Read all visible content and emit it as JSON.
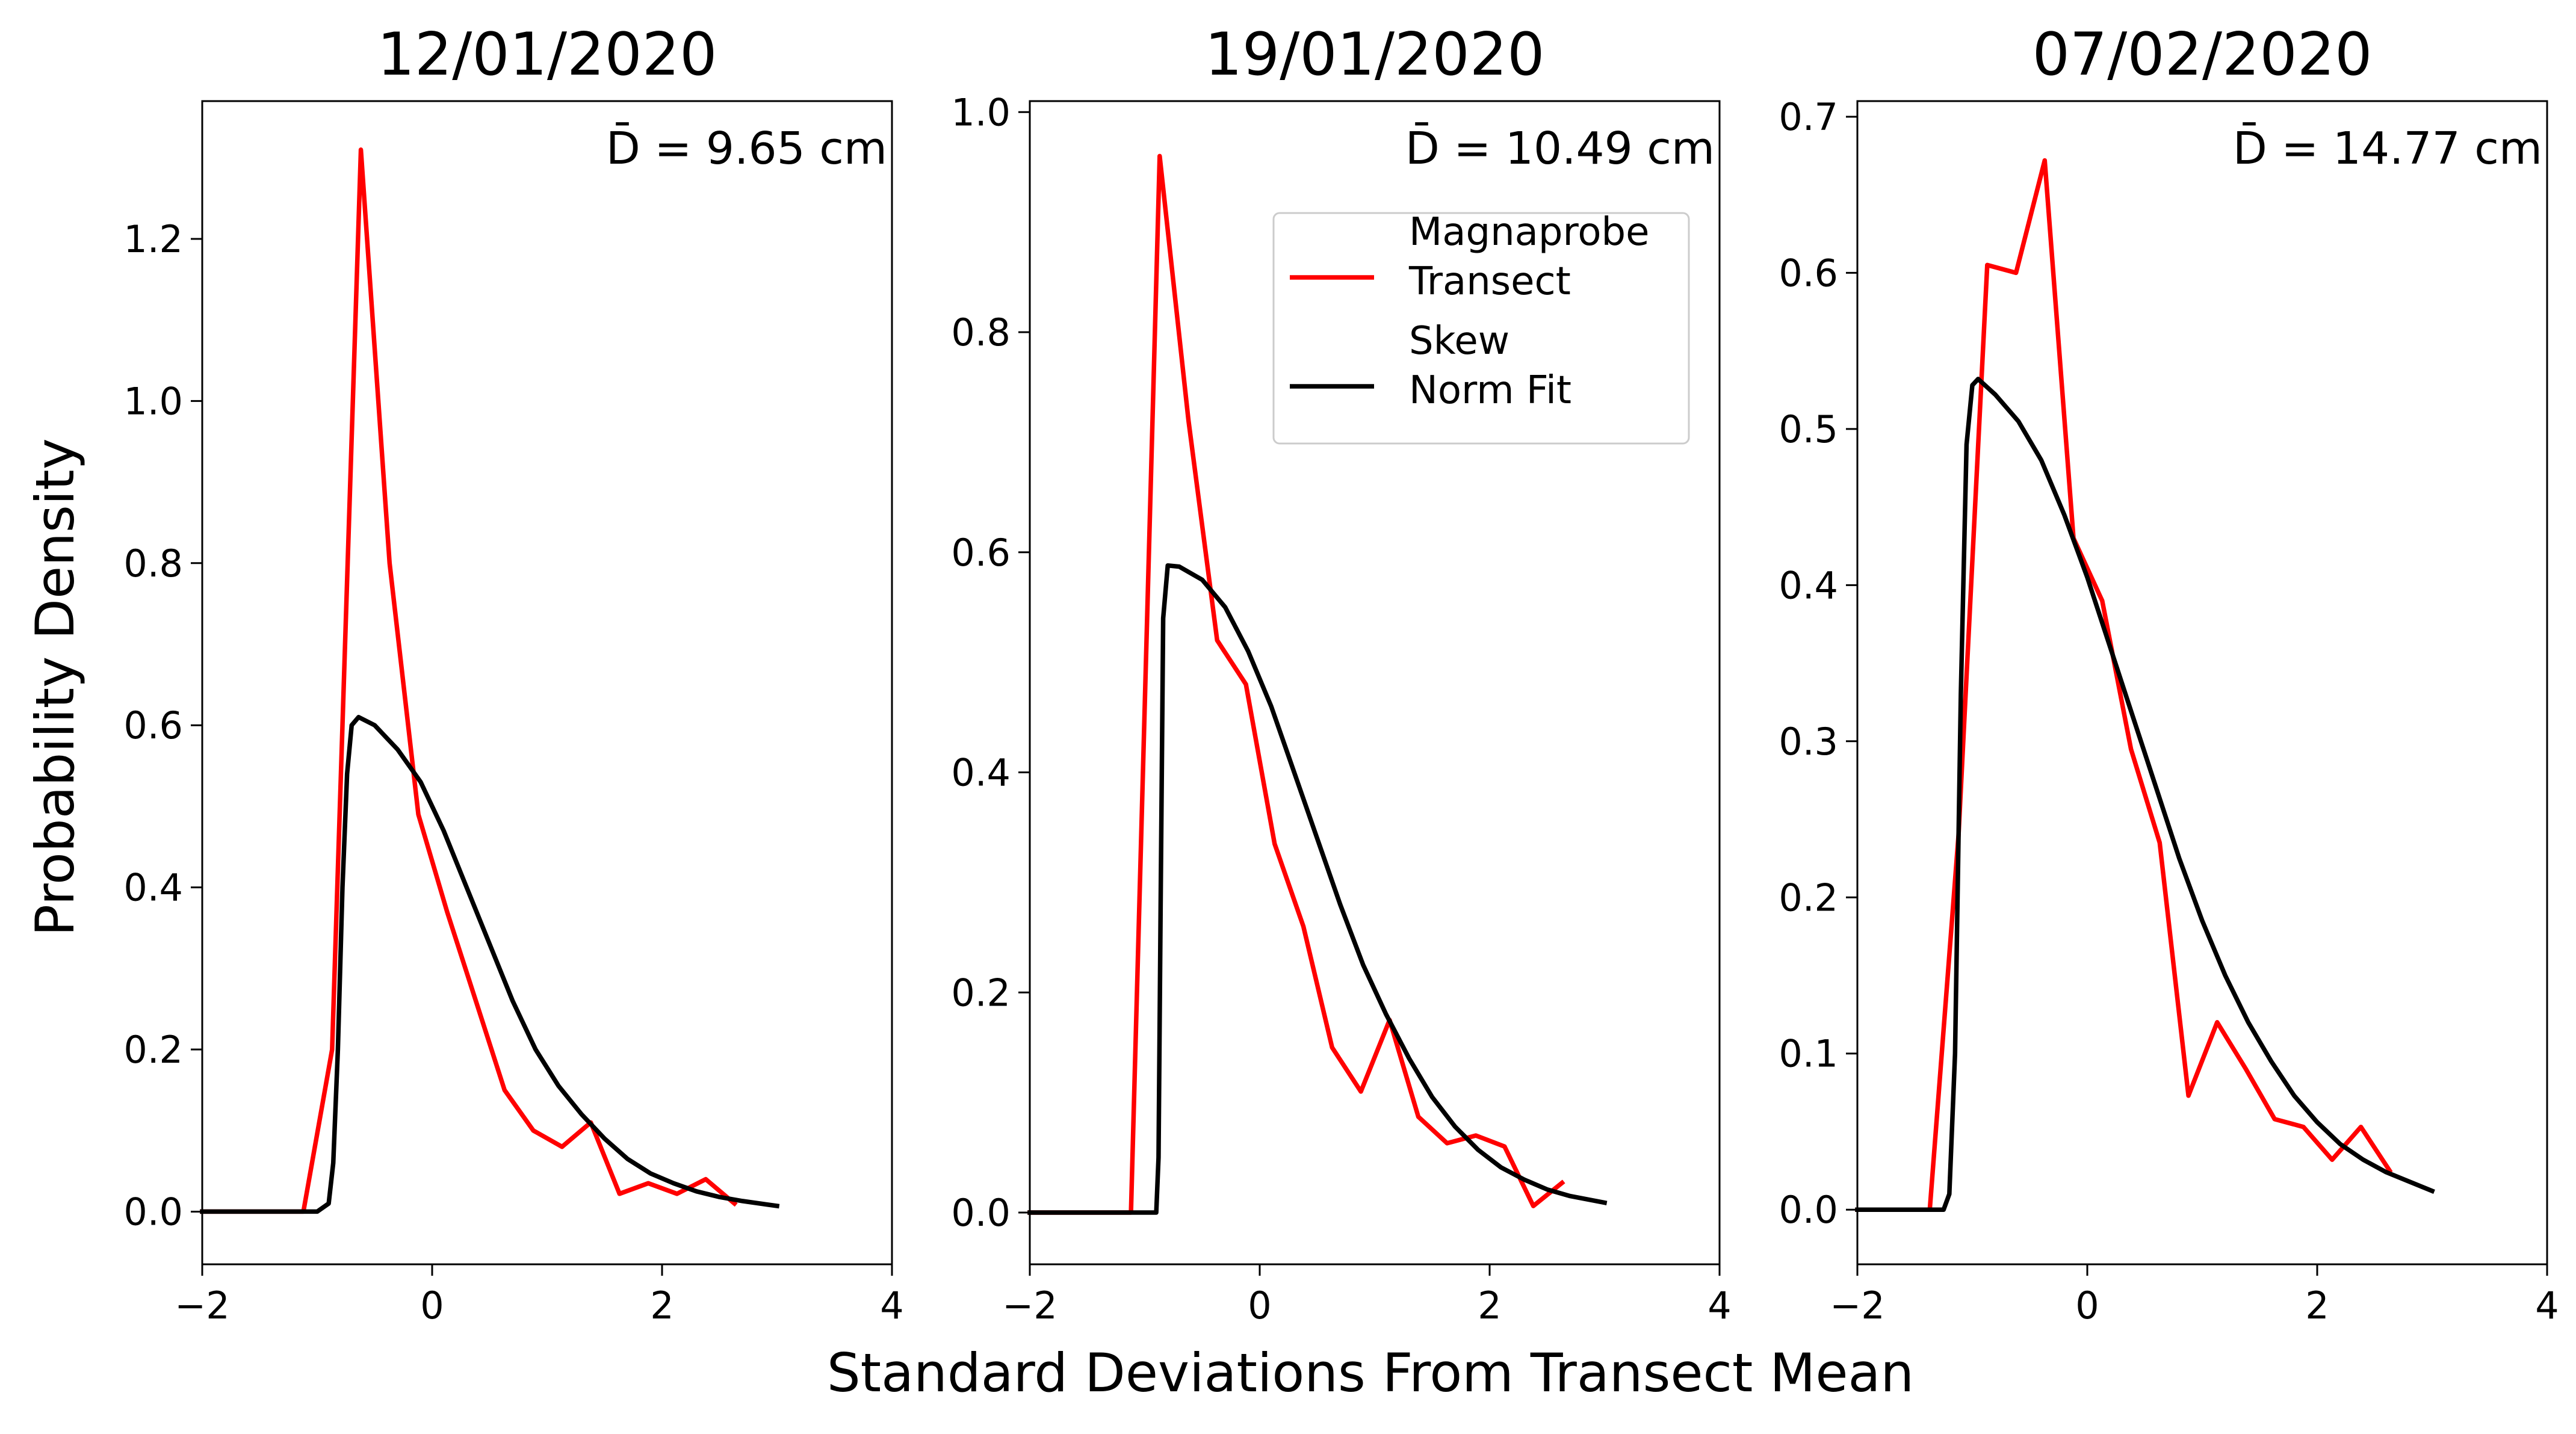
{
  "figure": {
    "xlabel": "Standard Deviations From Transect Mean",
    "ylabel": "Probability Density"
  },
  "legend": {
    "placement": "upper-right of middle panel",
    "entries": [
      {
        "lines": [
          "Magnaprobe",
          "Transect"
        ],
        "color": "#ff0000"
      },
      {
        "lines": [
          "Skew",
          "Norm Fit"
        ],
        "color": "#000000"
      }
    ]
  },
  "colors": {
    "transect": "#ff0000",
    "fit": "#000000"
  },
  "chart_data": [
    {
      "type": "line",
      "title": "12/01/2020",
      "annotation": "D̄ = 9.65 cm",
      "xlim": [
        -2,
        4
      ],
      "ylim": [
        -0.065,
        1.37
      ],
      "xticks": [
        -2,
        0,
        2,
        4
      ],
      "xtick_labels": [
        "−2",
        "0",
        "2",
        "4"
      ],
      "yticks": [
        0.0,
        0.2,
        0.4,
        0.6,
        0.8,
        1.0,
        1.2
      ],
      "ytick_labels": [
        "0.0",
        "0.2",
        "0.4",
        "0.6",
        "0.8",
        "1.0",
        "1.2"
      ],
      "grid": false,
      "series": [
        {
          "name": "Magnaprobe Transect",
          "x": [
            -2.0,
            -1.12,
            -0.87,
            -0.62,
            -0.37,
            -0.12,
            0.13,
            0.38,
            0.63,
            0.88,
            1.13,
            1.38,
            1.63,
            1.88,
            2.13,
            2.38,
            2.63
          ],
          "y": [
            0.0,
            0.0,
            0.2,
            1.31,
            0.8,
            0.49,
            0.37,
            0.26,
            0.15,
            0.1,
            0.08,
            0.11,
            0.022,
            0.035,
            0.022,
            0.04,
            0.01
          ]
        },
        {
          "name": "Skew Norm Fit",
          "x": [
            -2.0,
            -1.0,
            -0.9,
            -0.86,
            -0.82,
            -0.78,
            -0.74,
            -0.7,
            -0.64,
            -0.5,
            -0.3,
            -0.1,
            0.1,
            0.3,
            0.5,
            0.7,
            0.9,
            1.1,
            1.3,
            1.5,
            1.7,
            1.9,
            2.1,
            2.3,
            2.5,
            2.7,
            3.0
          ],
          "y": [
            0.0,
            0.0,
            0.01,
            0.06,
            0.2,
            0.4,
            0.54,
            0.6,
            0.61,
            0.6,
            0.57,
            0.53,
            0.47,
            0.4,
            0.33,
            0.26,
            0.2,
            0.155,
            0.12,
            0.09,
            0.065,
            0.047,
            0.035,
            0.025,
            0.018,
            0.013,
            0.007
          ]
        }
      ]
    },
    {
      "type": "line",
      "title": "19/01/2020",
      "annotation": "D̄ = 10.49 cm",
      "xlim": [
        -2,
        4
      ],
      "ylim": [
        -0.047,
        1.01
      ],
      "xticks": [
        -2,
        0,
        2,
        4
      ],
      "xtick_labels": [
        "−2",
        "0",
        "2",
        "4"
      ],
      "yticks": [
        0.0,
        0.2,
        0.4,
        0.6,
        0.8,
        1.0
      ],
      "ytick_labels": [
        "0.0",
        "0.2",
        "0.4",
        "0.6",
        "0.8",
        "1.0"
      ],
      "grid": false,
      "series": [
        {
          "name": "Magnaprobe Transect",
          "x": [
            -2.0,
            -1.12,
            -0.87,
            -0.62,
            -0.37,
            -0.12,
            0.13,
            0.38,
            0.63,
            0.88,
            1.13,
            1.38,
            1.63,
            1.88,
            2.13,
            2.38,
            2.63
          ],
          "y": [
            0.0,
            0.0,
            0.96,
            0.72,
            0.52,
            0.48,
            0.335,
            0.26,
            0.15,
            0.11,
            0.175,
            0.087,
            0.063,
            0.07,
            0.06,
            0.006,
            0.027
          ]
        },
        {
          "name": "Skew Norm Fit",
          "x": [
            -2.0,
            -0.9,
            -0.88,
            -0.86,
            -0.84,
            -0.8,
            -0.7,
            -0.5,
            -0.3,
            -0.1,
            0.1,
            0.3,
            0.5,
            0.7,
            0.9,
            1.1,
            1.3,
            1.5,
            1.7,
            1.9,
            2.1,
            2.3,
            2.5,
            2.7,
            3.0
          ],
          "y": [
            0.0,
            0.0,
            0.05,
            0.3,
            0.54,
            0.588,
            0.587,
            0.575,
            0.55,
            0.51,
            0.46,
            0.4,
            0.34,
            0.28,
            0.225,
            0.18,
            0.14,
            0.105,
            0.078,
            0.057,
            0.041,
            0.03,
            0.021,
            0.015,
            0.009
          ]
        }
      ]
    },
    {
      "type": "line",
      "title": "07/02/2020",
      "annotation": "D̄ = 14.77 cm",
      "xlim": [
        -2,
        4
      ],
      "ylim": [
        -0.035,
        0.71
      ],
      "xticks": [
        -2,
        0,
        2,
        4
      ],
      "xtick_labels": [
        "−2",
        "0",
        "2",
        "4"
      ],
      "yticks": [
        0.0,
        0.1,
        0.2,
        0.3,
        0.4,
        0.5,
        0.6,
        0.7
      ],
      "ytick_labels": [
        "0.0",
        "0.1",
        "0.2",
        "0.3",
        "0.4",
        "0.5",
        "0.6",
        "0.7"
      ],
      "grid": false,
      "series": [
        {
          "name": "Magnaprobe Transect",
          "x": [
            -2.0,
            -1.37,
            -1.12,
            -0.87,
            -0.62,
            -0.37,
            -0.12,
            0.13,
            0.38,
            0.63,
            0.88,
            1.13,
            1.38,
            1.63,
            1.88,
            2.13,
            2.38,
            2.63
          ],
          "y": [
            0.0,
            0.0,
            0.24,
            0.605,
            0.6,
            0.672,
            0.43,
            0.39,
            0.295,
            0.235,
            0.073,
            0.12,
            0.09,
            0.058,
            0.053,
            0.032,
            0.053,
            0.025
          ]
        },
        {
          "name": "Skew Norm Fit",
          "x": [
            -2.0,
            -1.25,
            -1.2,
            -1.15,
            -1.1,
            -1.05,
            -1.0,
            -0.95,
            -0.8,
            -0.6,
            -0.4,
            -0.2,
            0.0,
            0.2,
            0.4,
            0.6,
            0.8,
            1.0,
            1.2,
            1.4,
            1.6,
            1.8,
            2.0,
            2.2,
            2.4,
            2.6,
            2.8,
            3.0
          ],
          "y": [
            0.0,
            0.0,
            0.01,
            0.1,
            0.33,
            0.49,
            0.528,
            0.532,
            0.522,
            0.505,
            0.48,
            0.445,
            0.405,
            0.36,
            0.315,
            0.27,
            0.225,
            0.185,
            0.15,
            0.12,
            0.095,
            0.073,
            0.056,
            0.042,
            0.032,
            0.024,
            0.018,
            0.012
          ]
        }
      ]
    }
  ]
}
